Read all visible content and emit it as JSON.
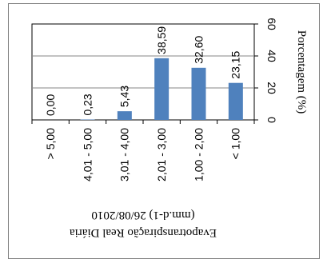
{
  "chart_data": {
    "type": "bar",
    "orientation": "rotated-90",
    "categories": [
      "> 5,00",
      "4,01 - 5,00",
      "3,01 - 4,00",
      "2,01 - 3,00",
      "1,00 - 2,00",
      "< 1,00"
    ],
    "values": [
      0.0,
      0.23,
      5.43,
      38.59,
      32.6,
      23.15
    ],
    "data_labels": [
      "0,00",
      "0,23",
      "5,43",
      "38,59",
      "32,60",
      "23,15"
    ],
    "xlabel_lines": [
      "Evapotranspiração Real Diária",
      "(mm.d-1) 26/08/2010"
    ],
    "ylabel": "Porcentagem (%)",
    "ylim": [
      0,
      60
    ],
    "yticks": [
      0,
      20,
      40,
      60
    ],
    "ytick_labels": [
      "0",
      "20",
      "40",
      "60"
    ],
    "grid": true,
    "legend": "none",
    "bar_color": "#4f81bd"
  }
}
